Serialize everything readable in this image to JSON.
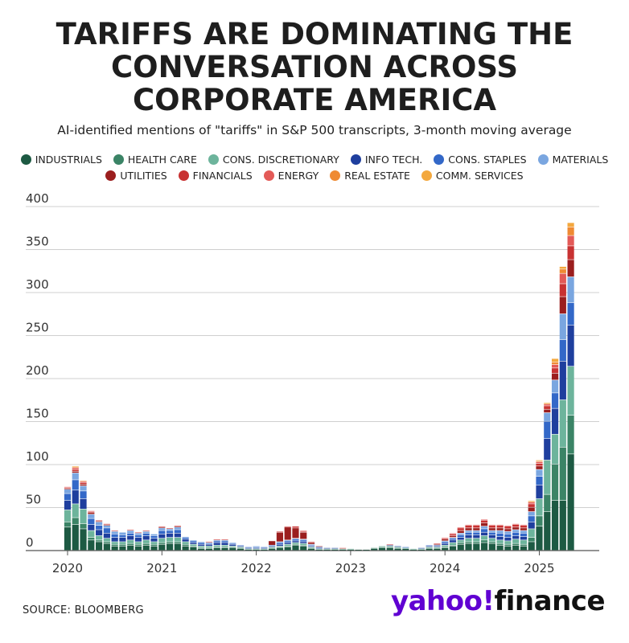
{
  "title_lines": [
    "TARIFFS ARE DOMINATING THE",
    "CONVERSATION ACROSS",
    "CORPORATE AMERICA"
  ],
  "subtitle": "AI-identified mentions of \"tariffs\" in S&P 500 transcripts, 3-month moving average",
  "source": "SOURCE: BLOOMBERG",
  "logo": {
    "yahoo": "yahoo!",
    "finance": "finance"
  },
  "legend": [
    {
      "label": "INDUSTRIALS",
      "color": "#1d5a43"
    },
    {
      "label": "HEALTH CARE",
      "color": "#3b8466"
    },
    {
      "label": "CONS. DISCRETIONARY",
      "color": "#6db49c"
    },
    {
      "label": "INFO TECH.",
      "color": "#1f3f9e"
    },
    {
      "label": "CONS. STAPLES",
      "color": "#3368c8"
    },
    {
      "label": "MATERIALS",
      "color": "#7aa6e0"
    },
    {
      "label": "UTILITIES",
      "color": "#9b1e1e"
    },
    {
      "label": "FINANCIALS",
      "color": "#c83232"
    },
    {
      "label": "ENERGY",
      "color": "#e35a57"
    },
    {
      "label": "REAL ESTATE",
      "color": "#ef8a33"
    },
    {
      "label": "COMM. SERVICES",
      "color": "#f3a83e"
    }
  ],
  "chart_data": {
    "type": "bar",
    "stacked": true,
    "ylim": [
      0,
      400
    ],
    "yticks": [
      0,
      50,
      100,
      150,
      200,
      250,
      300,
      350,
      400
    ],
    "x_start": 2020.0,
    "x_end": 2025.25,
    "x_step_months": 1,
    "xtick_labels": [
      "2020",
      "2021",
      "2022",
      "2023",
      "2024",
      "2025"
    ],
    "series_order": [
      "INDUSTRIALS",
      "HEALTH CARE",
      "CONS. DISCRETIONARY",
      "INFO TECH.",
      "CONS. STAPLES",
      "MATERIALS",
      "UTILITIES",
      "FINANCIALS",
      "ENERGY",
      "REAL ESTATE",
      "COMM. SERVICES"
    ],
    "bars": [
      [
        27,
        6,
        14,
        11,
        8,
        5,
        1,
        1,
        1,
        0,
        0
      ],
      [
        30,
        8,
        16,
        16,
        12,
        8,
        2,
        2,
        2,
        1,
        1
      ],
      [
        25,
        6,
        17,
        12,
        9,
        6,
        2,
        2,
        1,
        1,
        0
      ],
      [
        12,
        3,
        8,
        7,
        7,
        5,
        2,
        1,
        1,
        0,
        0
      ],
      [
        10,
        2,
        5,
        7,
        5,
        4,
        1,
        1,
        0,
        0,
        0
      ],
      [
        8,
        2,
        4,
        6,
        6,
        3,
        1,
        1,
        0,
        0,
        0
      ],
      [
        5,
        2,
        3,
        5,
        4,
        3,
        0,
        1,
        0,
        0,
        0
      ],
      [
        5,
        2,
        3,
        5,
        3,
        3,
        0,
        0,
        0,
        0,
        0
      ],
      [
        6,
        2,
        4,
        5,
        3,
        3,
        0,
        1,
        0,
        0,
        0
      ],
      [
        5,
        2,
        3,
        5,
        3,
        2,
        0,
        1,
        0,
        0,
        0
      ],
      [
        6,
        2,
        4,
        5,
        3,
        2,
        0,
        1,
        0,
        0,
        0
      ],
      [
        5,
        2,
        3,
        4,
        3,
        2,
        0,
        0,
        0,
        0,
        0
      ],
      [
        7,
        2,
        5,
        5,
        4,
        3,
        1,
        1,
        0,
        0,
        0
      ],
      [
        8,
        2,
        5,
        5,
        3,
        2,
        0,
        1,
        0,
        0,
        0
      ],
      [
        8,
        2,
        5,
        5,
        4,
        3,
        1,
        1,
        0,
        0,
        0
      ],
      [
        5,
        2,
        3,
        3,
        2,
        1,
        0,
        0,
        0,
        0,
        0
      ],
      [
        4,
        1,
        2,
        2,
        2,
        1,
        0,
        0,
        0,
        0,
        0
      ],
      [
        2,
        1,
        2,
        2,
        2,
        1,
        0,
        0,
        0,
        0,
        0
      ],
      [
        2,
        1,
        2,
        2,
        1,
        1,
        0,
        1,
        0,
        0,
        0
      ],
      [
        3,
        1,
        2,
        3,
        2,
        1,
        0,
        1,
        0,
        0,
        0
      ],
      [
        3,
        1,
        2,
        3,
        2,
        1,
        0,
        1,
        0,
        0,
        0
      ],
      [
        3,
        1,
        1,
        2,
        1,
        1,
        0,
        0,
        0,
        0,
        0
      ],
      [
        2,
        1,
        1,
        1,
        1,
        0,
        0,
        0,
        0,
        0,
        0
      ],
      [
        1,
        0,
        1,
        1,
        1,
        0,
        0,
        0,
        0,
        0,
        0
      ],
      [
        1,
        0,
        1,
        1,
        1,
        1,
        0,
        0,
        0,
        0,
        0
      ],
      [
        1,
        0,
        1,
        1,
        1,
        0,
        0,
        0,
        0,
        0,
        0
      ],
      [
        2,
        1,
        1,
        1,
        1,
        0,
        5,
        0,
        0,
        0,
        0
      ],
      [
        3,
        1,
        1,
        2,
        2,
        1,
        11,
        1,
        0,
        0,
        0
      ],
      [
        4,
        1,
        2,
        2,
        2,
        1,
        15,
        1,
        0,
        0,
        0
      ],
      [
        6,
        1,
        2,
        2,
        2,
        1,
        12,
        2,
        0,
        0,
        0
      ],
      [
        5,
        1,
        2,
        2,
        2,
        1,
        8,
        1,
        1,
        0,
        0
      ],
      [
        2,
        1,
        1,
        1,
        1,
        1,
        2,
        1,
        0,
        0,
        0
      ],
      [
        1,
        0,
        1,
        1,
        1,
        0,
        1,
        0,
        0,
        0,
        0
      ],
      [
        1,
        0,
        1,
        1,
        0,
        0,
        0,
        0,
        0,
        0,
        0
      ],
      [
        1,
        0,
        1,
        1,
        0,
        0,
        0,
        0,
        0,
        0,
        0
      ],
      [
        1,
        0,
        1,
        0,
        0,
        0,
        0,
        1,
        0,
        0,
        0
      ],
      [
        1,
        0,
        1,
        0,
        0,
        0,
        0,
        0,
        0,
        0,
        0
      ],
      [
        1,
        0,
        0,
        0,
        0,
        0,
        0,
        0,
        0,
        0,
        0
      ],
      [
        1,
        0,
        0,
        0,
        0,
        0,
        0,
        0,
        0,
        0,
        0
      ],
      [
        2,
        1,
        0,
        0,
        0,
        0,
        0,
        0,
        0,
        0,
        0
      ],
      [
        3,
        1,
        1,
        0,
        0,
        0,
        0,
        0,
        0,
        0,
        0
      ],
      [
        3,
        1,
        1,
        1,
        0,
        0,
        0,
        1,
        0,
        0,
        0
      ],
      [
        2,
        1,
        1,
        1,
        0,
        0,
        0,
        0,
        0,
        0,
        0
      ],
      [
        2,
        0,
        1,
        0,
        1,
        0,
        0,
        0,
        0,
        0,
        0
      ],
      [
        1,
        0,
        1,
        0,
        0,
        0,
        0,
        0,
        0,
        0,
        0
      ],
      [
        1,
        0,
        1,
        1,
        0,
        0,
        0,
        0,
        0,
        0,
        0
      ],
      [
        2,
        1,
        1,
        1,
        1,
        0,
        0,
        0,
        0,
        0,
        0
      ],
      [
        2,
        1,
        1,
        1,
        1,
        0,
        1,
        1,
        0,
        0,
        0
      ],
      [
        3,
        1,
        2,
        2,
        2,
        1,
        2,
        1,
        1,
        0,
        0
      ],
      [
        5,
        1,
        3,
        3,
        2,
        1,
        2,
        2,
        1,
        0,
        0
      ],
      [
        7,
        2,
        3,
        3,
        3,
        2,
        3,
        3,
        1,
        0,
        0
      ],
      [
        8,
        2,
        4,
        4,
        3,
        2,
        3,
        3,
        1,
        0,
        0
      ],
      [
        8,
        2,
        4,
        4,
        3,
        2,
        3,
        3,
        1,
        0,
        0
      ],
      [
        9,
        3,
        5,
        4,
        4,
        3,
        4,
        3,
        1,
        0,
        0
      ],
      [
        8,
        2,
        4,
        4,
        3,
        2,
        3,
        3,
        1,
        0,
        0
      ],
      [
        6,
        2,
        4,
        4,
        4,
        3,
        3,
        3,
        1,
        0,
        0
      ],
      [
        5,
        2,
        4,
        4,
        4,
        3,
        3,
        3,
        1,
        0,
        0
      ],
      [
        6,
        2,
        5,
        4,
        4,
        3,
        3,
        3,
        1,
        0,
        0
      ],
      [
        5,
        2,
        5,
        4,
        4,
        3,
        3,
        3,
        1,
        0,
        0
      ],
      [
        10,
        5,
        10,
        8,
        7,
        5,
        5,
        4,
        2,
        1,
        1
      ],
      [
        28,
        12,
        20,
        16,
        10,
        8,
        4,
        3,
        2,
        1,
        1
      ],
      [
        45,
        20,
        40,
        25,
        20,
        10,
        4,
        4,
        2,
        1,
        1
      ],
      [
        58,
        42,
        35,
        30,
        18,
        15,
        8,
        6,
        4,
        3,
        4
      ],
      [
        58,
        62,
        55,
        45,
        25,
        30,
        20,
        15,
        12,
        5,
        3
      ],
      [
        112,
        45,
        57,
        48,
        26,
        30,
        20,
        16,
        12,
        10,
        5
      ]
    ]
  }
}
